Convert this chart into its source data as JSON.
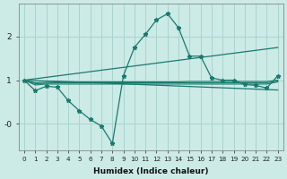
{
  "xlabel": "Humidex (Indice chaleur)",
  "bg_color": "#cceae6",
  "grid_color": "#aad4cf",
  "line_color": "#1a7a6e",
  "x": [
    0,
    1,
    2,
    3,
    4,
    5,
    6,
    7,
    8,
    9,
    10,
    11,
    12,
    13,
    14,
    15,
    16,
    17,
    18,
    19,
    20,
    21,
    22,
    23
  ],
  "line_main": [
    1.0,
    0.76,
    0.86,
    0.84,
    0.53,
    0.3,
    0.1,
    -0.05,
    -0.45,
    1.1,
    1.75,
    2.05,
    2.38,
    2.52,
    2.2,
    1.55,
    1.55,
    1.05,
    1.0,
    1.0,
    0.9,
    0.88,
    0.82,
    1.1
  ],
  "line_flat1": [
    1.0,
    0.94,
    0.95,
    0.96,
    0.96,
    0.96,
    0.96,
    0.96,
    0.96,
    0.96,
    0.96,
    0.96,
    0.96,
    0.96,
    0.96,
    0.97,
    0.97,
    0.97,
    0.97,
    0.97,
    0.97,
    0.97,
    0.97,
    1.0
  ],
  "line_flat2": [
    1.0,
    0.92,
    0.93,
    0.94,
    0.94,
    0.94,
    0.94,
    0.94,
    0.94,
    0.94,
    0.94,
    0.94,
    0.94,
    0.94,
    0.94,
    0.94,
    0.94,
    0.94,
    0.94,
    0.94,
    0.94,
    0.94,
    0.94,
    0.98
  ],
  "line_flat3": [
    1.0,
    0.89,
    0.91,
    0.91,
    0.91,
    0.91,
    0.91,
    0.91,
    0.91,
    0.91,
    0.91,
    0.91,
    0.91,
    0.91,
    0.91,
    0.91,
    0.91,
    0.91,
    0.91,
    0.91,
    0.91,
    0.91,
    0.91,
    0.96
  ],
  "line_up": [
    1.0,
    1.032,
    1.065,
    1.097,
    1.13,
    1.162,
    1.195,
    1.228,
    1.26,
    1.292,
    1.325,
    1.357,
    1.39,
    1.423,
    1.455,
    1.488,
    1.52,
    1.552,
    1.585,
    1.617,
    1.65,
    1.682,
    1.715,
    1.748
  ],
  "line_down": [
    1.0,
    0.99,
    0.98,
    0.975,
    0.965,
    0.955,
    0.945,
    0.935,
    0.925,
    0.915,
    0.905,
    0.895,
    0.885,
    0.875,
    0.865,
    0.855,
    0.845,
    0.835,
    0.825,
    0.815,
    0.805,
    0.795,
    0.785,
    0.775
  ],
  "ylim": [
    -0.6,
    2.75
  ],
  "xlim": [
    -0.5,
    23.5
  ]
}
